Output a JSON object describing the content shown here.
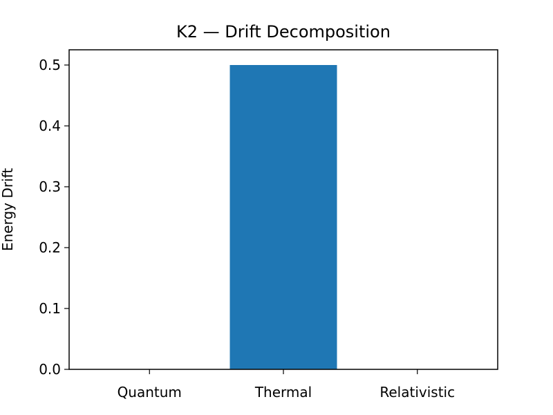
{
  "chart_data": {
    "type": "bar",
    "title": "K2 — Drift Decomposition",
    "xlabel": "",
    "ylabel": "Energy Drift",
    "categories": [
      "Quantum",
      "Thermal",
      "Relativistic"
    ],
    "values": [
      0.0,
      0.5,
      0.0
    ],
    "ylim": [
      0,
      0.525
    ],
    "yticks": [
      0.0,
      0.1,
      0.2,
      0.3,
      0.4,
      0.5
    ],
    "ytick_labels": [
      "0.0",
      "0.1",
      "0.2",
      "0.3",
      "0.4",
      "0.5"
    ],
    "bar_color": "#1f77b4",
    "grid": false,
    "legend": "none"
  }
}
